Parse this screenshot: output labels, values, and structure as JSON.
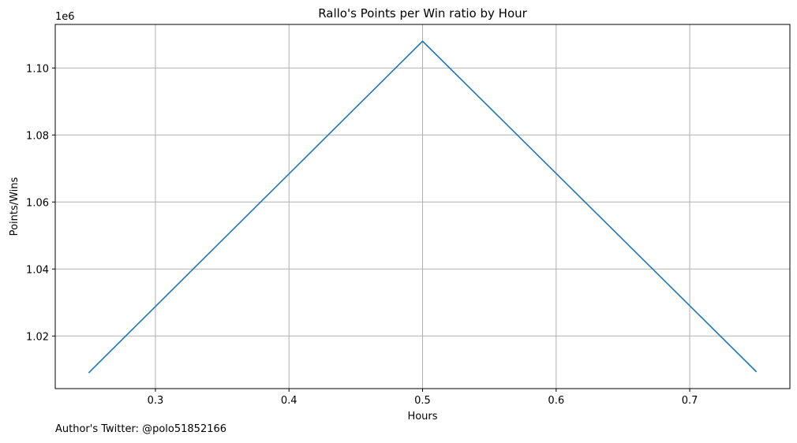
{
  "chart_data": {
    "type": "line",
    "title": "Rallo's Points per Win ratio by Hour",
    "xlabel": "Hours",
    "ylabel": "Points/Wins",
    "y_offset_label": "1e6",
    "x": [
      0.25,
      0.5,
      0.75
    ],
    "series": [
      {
        "values": [
          1009000,
          1108000,
          1009300
        ],
        "color": "#1f77b4"
      }
    ],
    "xlim": [
      0.225,
      0.775
    ],
    "ylim": [
      1004300,
      1113000
    ],
    "x_ticks": [
      0.3,
      0.4,
      0.5,
      0.6,
      0.7
    ],
    "x_tick_labels": [
      "0.3",
      "0.4",
      "0.5",
      "0.6",
      "0.7"
    ],
    "y_ticks": [
      1020000,
      1040000,
      1060000,
      1080000,
      1100000
    ],
    "y_tick_labels": [
      "1.02",
      "1.04",
      "1.06",
      "1.08",
      "1.10"
    ],
    "grid": true,
    "grid_color": "#b0b0b0"
  },
  "footer": {
    "text": "Author's Twitter: @polo51852166"
  }
}
